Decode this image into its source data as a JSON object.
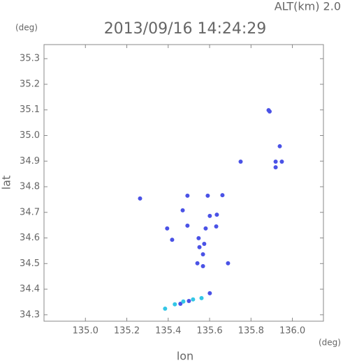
{
  "chart_data": {
    "type": "scatter",
    "title": "2013/09/16 14:24:29",
    "subtitle": "ALT(km) 2.0",
    "ylabel": "lat",
    "yunit": "(deg)",
    "xlabel": "lon",
    "xunit": "(deg)",
    "xlim": [
      134.8,
      136.15
    ],
    "ylim": [
      34.275,
      35.355
    ],
    "xticks": [
      {
        "value": 135,
        "label": "135.0"
      },
      135.2,
      135.4,
      135.6,
      135.8,
      {
        "value": 136,
        "label": "136.0"
      }
    ],
    "yticks": [
      34.3,
      34.4,
      34.5,
      34.6,
      34.7,
      34.8,
      34.9,
      {
        "value": 35,
        "label": "35.0"
      },
      35.1,
      35.2,
      35.3
    ],
    "series": [
      {
        "color": "#4a52e6",
        "x": [
          135.885,
          135.89,
          135.939,
          135.919,
          135.949,
          135.919,
          135.75,
          135.264,
          135.493,
          135.591,
          135.662,
          135.47,
          135.635,
          135.601,
          135.395,
          135.493,
          135.581,
          135.632,
          135.419,
          135.547,
          135.574,
          135.551,
          135.568,
          135.541,
          135.568,
          135.689,
          135.601,
          135.459,
          135.5
        ],
        "values": [
          35.099,
          35.094,
          34.958,
          34.898,
          34.898,
          34.876,
          34.898,
          34.754,
          34.765,
          34.765,
          34.767,
          34.708,
          34.691,
          34.686,
          34.637,
          34.648,
          34.637,
          34.645,
          34.593,
          34.599,
          34.577,
          34.564,
          34.536,
          34.501,
          34.49,
          34.501,
          34.384,
          34.343,
          34.354
        ]
      },
      {
        "color": "#33c6e6",
        "x": [
          135.385,
          135.432,
          135.473,
          135.52,
          135.561
        ],
        "values": [
          34.324,
          34.341,
          34.352,
          34.36,
          34.365
        ]
      }
    ]
  }
}
